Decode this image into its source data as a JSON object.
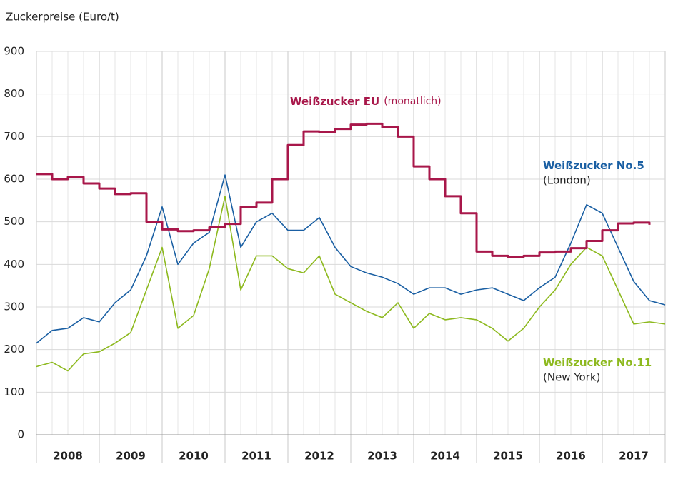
{
  "chart_data": {
    "type": "line",
    "y_axis_title": "Zuckerpreise (Euro/t)",
    "x": [
      2008,
      2008.25,
      2008.5,
      2008.75,
      2009,
      2009.25,
      2009.5,
      2009.75,
      2010,
      2010.25,
      2010.5,
      2010.75,
      2011,
      2011.25,
      2011.5,
      2011.75,
      2012,
      2012.25,
      2012.5,
      2012.75,
      2013,
      2013.25,
      2013.5,
      2013.75,
      2014,
      2014.25,
      2014.5,
      2014.75,
      2015,
      2015.25,
      2015.5,
      2015.75,
      2016,
      2016.25,
      2016.5,
      2016.75,
      2017,
      2017.25,
      2017.5,
      2017.75,
      2018
    ],
    "series": [
      {
        "name": "Weißzucker EU",
        "note": "(monatlich)",
        "color": "#a8174a",
        "step": true,
        "values": [
          612,
          600,
          605,
          590,
          578,
          565,
          567,
          500,
          482,
          478,
          480,
          487,
          495,
          535,
          545,
          600,
          680,
          712,
          710,
          718,
          728,
          730,
          722,
          700,
          630,
          600,
          560,
          520,
          430,
          420,
          418,
          420,
          428,
          430,
          438,
          455,
          480,
          496,
          498,
          493,
          null
        ]
      },
      {
        "name": "Weißzucker No.5",
        "note": "(London)",
        "color": "#1a5fa3",
        "values": [
          215,
          245,
          250,
          275,
          265,
          310,
          340,
          420,
          535,
          400,
          450,
          475,
          610,
          440,
          500,
          520,
          480,
          480,
          510,
          440,
          395,
          380,
          370,
          355,
          330,
          345,
          345,
          330,
          340,
          345,
          330,
          315,
          345,
          370,
          450,
          540,
          520,
          440,
          360,
          315,
          305
        ]
      },
      {
        "name": "Weißzucker No.11",
        "note": "(New York)",
        "color": "#8db91e",
        "values": [
          160,
          170,
          150,
          190,
          195,
          215,
          240,
          340,
          440,
          250,
          280,
          390,
          560,
          340,
          420,
          420,
          390,
          380,
          420,
          330,
          310,
          290,
          275,
          310,
          250,
          285,
          270,
          275,
          270,
          250,
          220,
          250,
          300,
          340,
          400,
          440,
          420,
          340,
          260,
          265,
          260
        ]
      }
    ],
    "xlim": [
      2008,
      2018
    ],
    "xticks": [
      {
        "value": 2008.5,
        "label": "2008"
      },
      {
        "value": 2009.5,
        "label": "2009"
      },
      {
        "value": 2010.5,
        "label": "2010"
      },
      {
        "value": 2011.5,
        "label": "2011"
      },
      {
        "value": 2012.5,
        "label": "2012"
      },
      {
        "value": 2013.5,
        "label": "2013"
      },
      {
        "value": 2014.5,
        "label": "2014"
      },
      {
        "value": 2015.5,
        "label": "2015"
      },
      {
        "value": 2016.5,
        "label": "2016"
      },
      {
        "value": 2017.5,
        "label": "2017"
      }
    ],
    "ylim": [
      0,
      900
    ],
    "yticks": [
      0,
      100,
      200,
      300,
      400,
      500,
      600,
      700,
      800,
      900
    ],
    "grid": true
  }
}
